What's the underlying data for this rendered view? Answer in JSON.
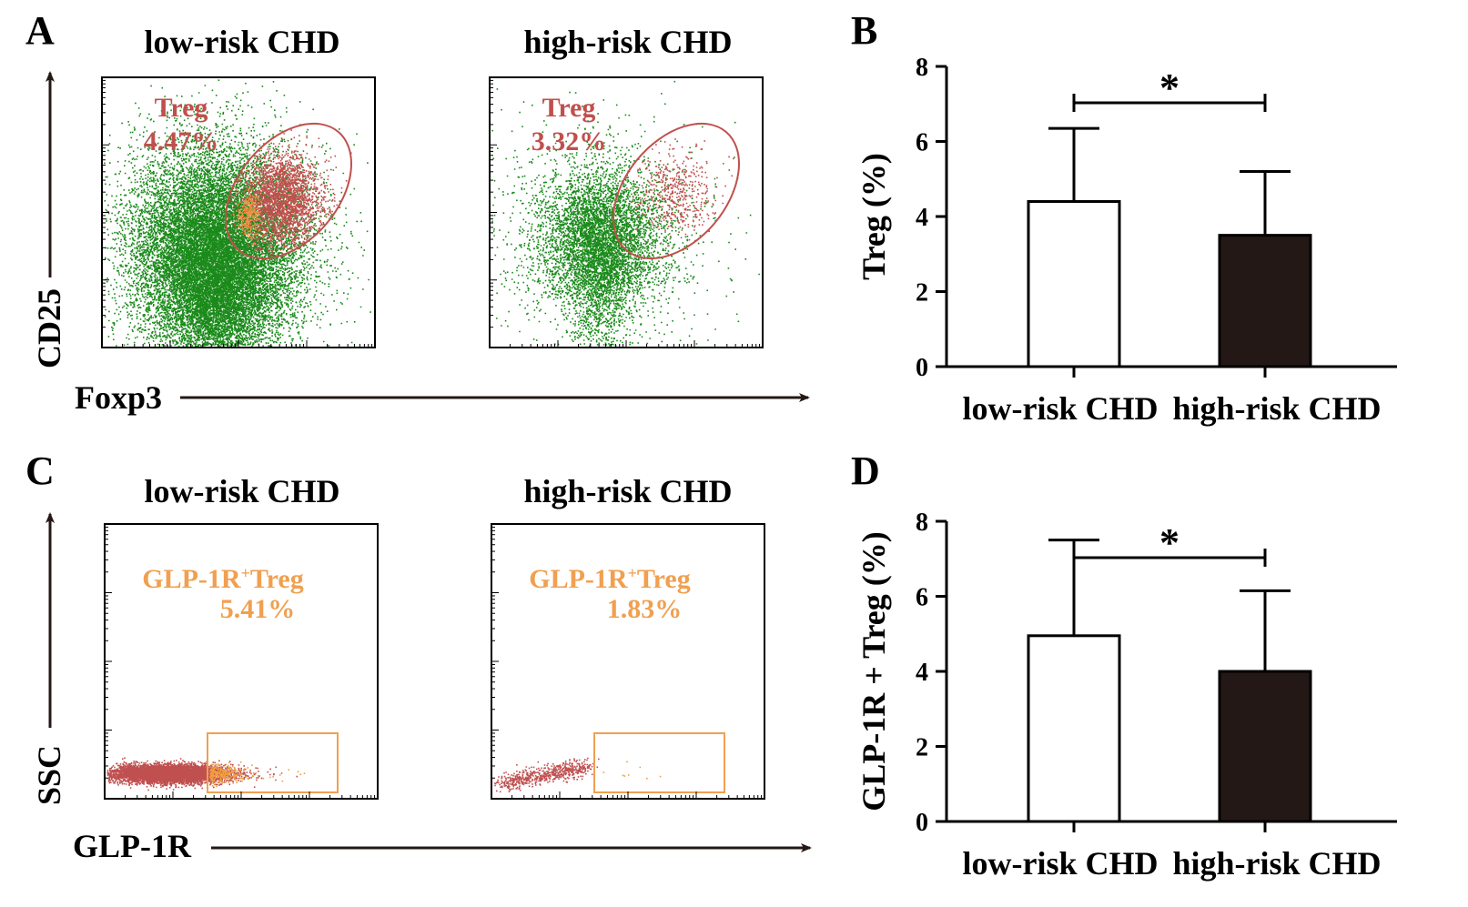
{
  "colors": {
    "axis": "#000000",
    "arrow": "#231815",
    "treg_gate": "#c0504d",
    "treg_label": "#c0504d",
    "glp_gate": "#f0a050",
    "glp_label": "#f0a050",
    "dots_main": "#1a8a1a",
    "dots_gate": "#c0504d",
    "dots_glp": "#c05050",
    "dots_glp_pos": "#f0a040",
    "bar_low": "#ffffff",
    "bar_high": "#231815"
  },
  "panels": {
    "A": {
      "letter": "A",
      "plots": [
        {
          "title": "low-risk CHD",
          "gate_name": "Treg",
          "gate_value": "4.47%"
        },
        {
          "title": "high-risk CHD",
          "gate_name": "Treg",
          "gate_value": "3.32%"
        }
      ],
      "xlabel": "Foxp3",
      "ylabel": "CD25"
    },
    "C": {
      "letter": "C",
      "plots": [
        {
          "title": "low-risk CHD",
          "gate_name": "GLP-1R",
          "gate_sup": "+",
          "gate_name2": "Treg",
          "gate_value": "5.41%"
        },
        {
          "title": "high-risk CHD",
          "gate_name": "GLP-1R",
          "gate_sup": "+",
          "gate_name2": "Treg",
          "gate_value": "1.83%"
        }
      ],
      "xlabel": "GLP-1R",
      "ylabel": "SSC"
    },
    "B": {
      "letter": "B"
    },
    "D": {
      "letter": "D"
    }
  },
  "chart_data": [
    {
      "panel": "B",
      "type": "bar",
      "categories": [
        "low-risk CHD",
        "high-risk CHD"
      ],
      "values": [
        4.4,
        3.5
      ],
      "error_upper": [
        6.35,
        5.2
      ],
      "ylabel": "Treg (%)",
      "xlabel": "",
      "ylim": [
        0,
        8
      ],
      "yticks": [
        0,
        2,
        4,
        6,
        8
      ],
      "significance": {
        "between": [
          0,
          1
        ],
        "label": "*"
      },
      "grid": false
    },
    {
      "panel": "D",
      "type": "bar",
      "categories": [
        "low-risk CHD",
        "high-risk CHD"
      ],
      "values": [
        4.95,
        4.0
      ],
      "error_upper": [
        7.5,
        6.15
      ],
      "ylabel": "GLP-1R + Treg (%)",
      "xlabel": "",
      "ylim": [
        0,
        8
      ],
      "yticks": [
        0,
        2,
        4,
        6,
        8
      ],
      "significance": {
        "between": [
          0,
          1
        ],
        "label": "*"
      },
      "grid": false
    }
  ]
}
